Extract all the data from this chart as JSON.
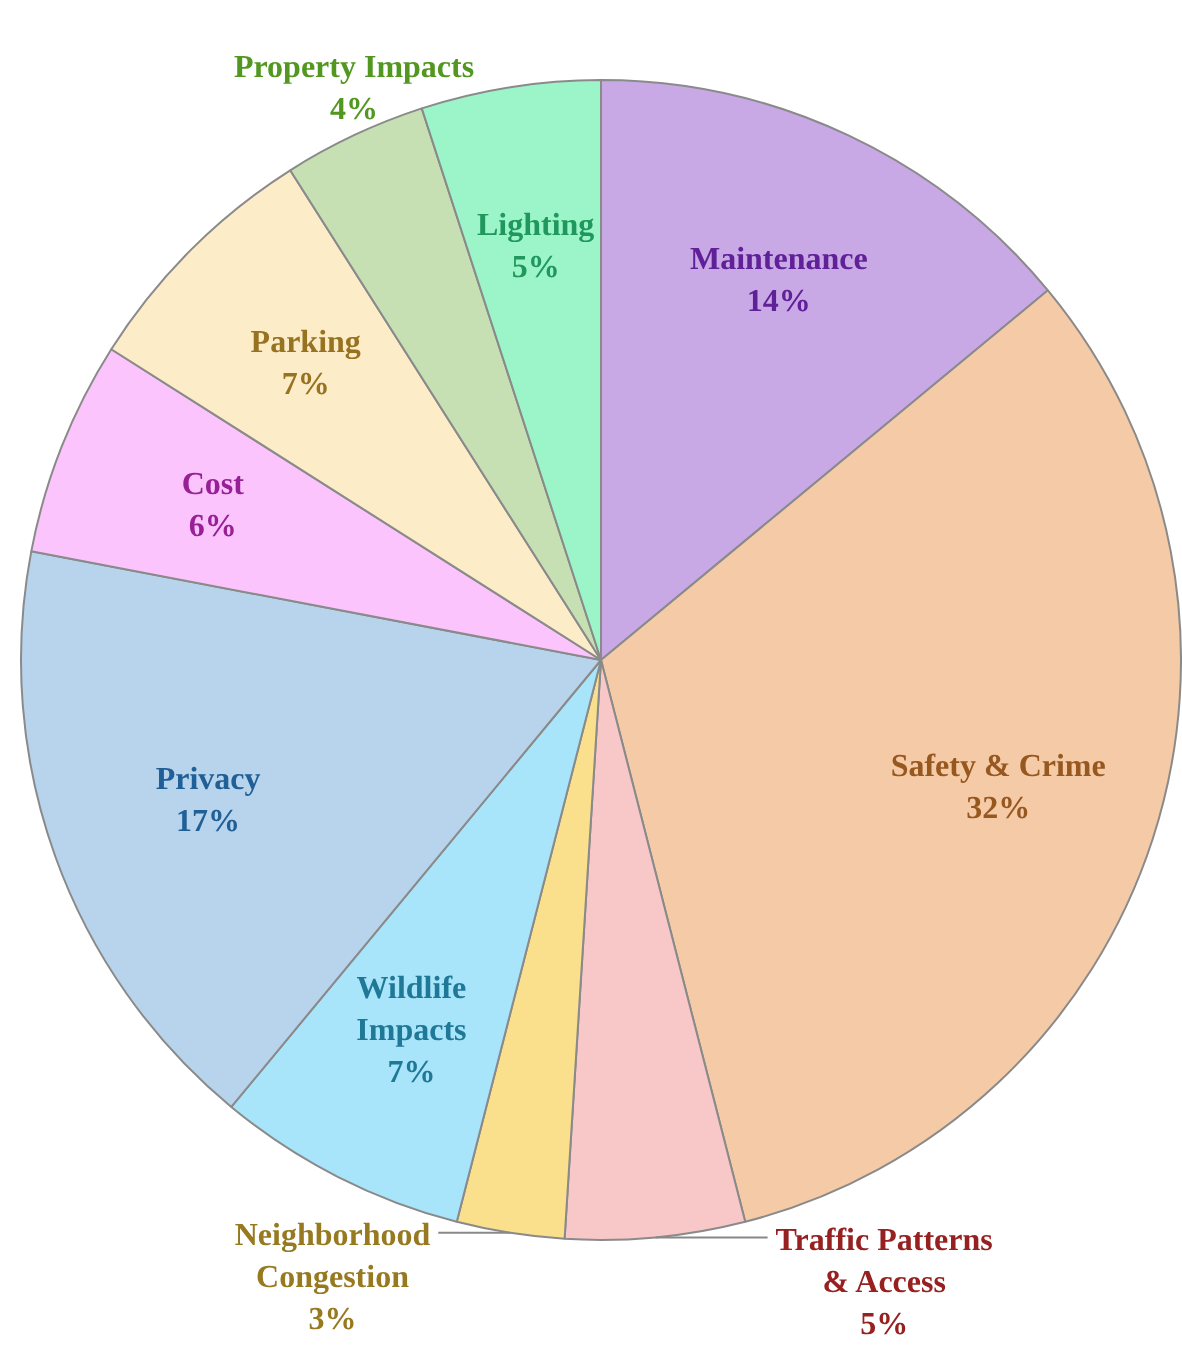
{
  "chart_data": {
    "type": "pie",
    "categories": [
      "Maintenance",
      "Safety & Crime",
      "Traffic Patterns & Access",
      "Neighborhood Congestion",
      "Wildlife Impacts",
      "Privacy",
      "Cost",
      "Parking",
      "Property Impacts",
      "Lighting"
    ],
    "values": [
      14,
      32,
      5,
      3,
      7,
      17,
      6,
      7,
      4,
      5
    ],
    "colors": [
      "#c9a8e6",
      "#f5cba7",
      "#f8c8c8",
      "#fadf8c",
      "#a8e4fa",
      "#b8d4ec",
      "#fcc4fc",
      "#fdecc8",
      "#c6e0b4",
      "#9cf5c8"
    ],
    "value_labels": [
      "14%",
      "32%",
      "5%",
      "3%",
      "7%",
      "17%",
      "6%",
      "7%",
      "4%",
      "5%"
    ]
  }
}
